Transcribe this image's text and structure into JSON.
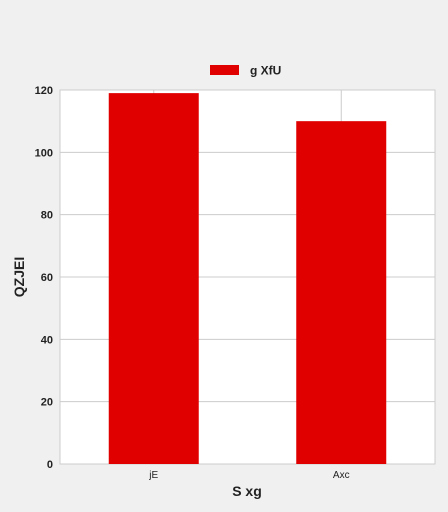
{
  "chart_data": {
    "type": "bar",
    "categories": [
      "jE",
      "Axc"
    ],
    "series": [
      {
        "name": "g XfU",
        "values": [
          119,
          110
        ],
        "color": "#e00000"
      }
    ],
    "xlabel": "S xg",
    "ylabel": "QZJEI",
    "ylim": [
      0,
      120
    ],
    "yticks": [
      0,
      20,
      40,
      60,
      80,
      100,
      120
    ],
    "grid": true,
    "legend": "top-center",
    "colors": {
      "background": "#f0f0f0",
      "plot_background": "#ffffff",
      "grid": "#cccccc",
      "bar": "#e00000"
    }
  }
}
